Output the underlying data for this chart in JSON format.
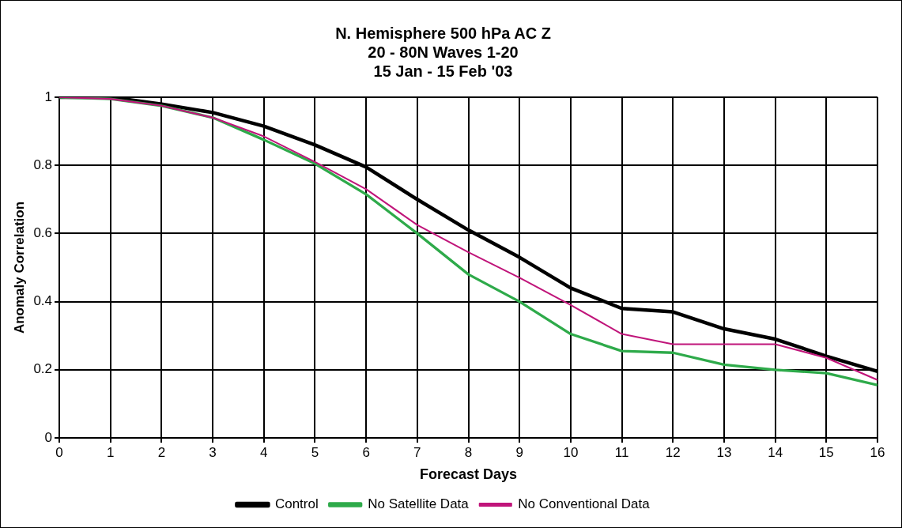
{
  "chart_data": {
    "type": "line",
    "title": [
      "N. Hemisphere 500 hPa AC Z",
      "20 - 80N Waves 1-20",
      "15 Jan - 15 Feb '03"
    ],
    "xlabel": "Forecast Days",
    "ylabel": "Anomaly Correlation",
    "x": [
      0,
      1,
      2,
      3,
      4,
      5,
      6,
      7,
      8,
      9,
      10,
      11,
      12,
      13,
      14,
      15,
      16
    ],
    "xlim": [
      0,
      16
    ],
    "xticks": [
      0,
      1,
      2,
      3,
      4,
      5,
      6,
      7,
      8,
      9,
      10,
      11,
      12,
      13,
      14,
      15,
      16
    ],
    "ylim": [
      0,
      1
    ],
    "yticks": [
      0,
      0.2,
      0.4,
      0.6,
      0.8,
      1
    ],
    "grid": true,
    "legend": "bottom",
    "marker": "none",
    "line_style": "solid",
    "series": [
      {
        "name": "Control",
        "color": "#000000",
        "values": [
          1,
          1.0,
          0.98,
          0.955,
          0.915,
          0.86,
          0.795,
          0.7,
          0.61,
          0.53,
          0.44,
          0.38,
          0.37,
          0.32,
          0.29,
          0.24,
          0.195
        ]
      },
      {
        "name": "No Satellite Data",
        "color": "#2eaa4a",
        "values": [
          1,
          0.995,
          0.975,
          0.94,
          0.875,
          0.805,
          0.715,
          0.6,
          0.48,
          0.4,
          0.305,
          0.255,
          0.25,
          0.215,
          0.2,
          0.19,
          0.155
        ]
      },
      {
        "name": "No Conventional Data",
        "color": "#c0157a",
        "values": [
          1,
          0.995,
          0.975,
          0.94,
          0.885,
          0.81,
          0.73,
          0.625,
          0.545,
          0.47,
          0.39,
          0.305,
          0.275,
          0.275,
          0.275,
          0.235,
          0.17
        ]
      }
    ]
  }
}
